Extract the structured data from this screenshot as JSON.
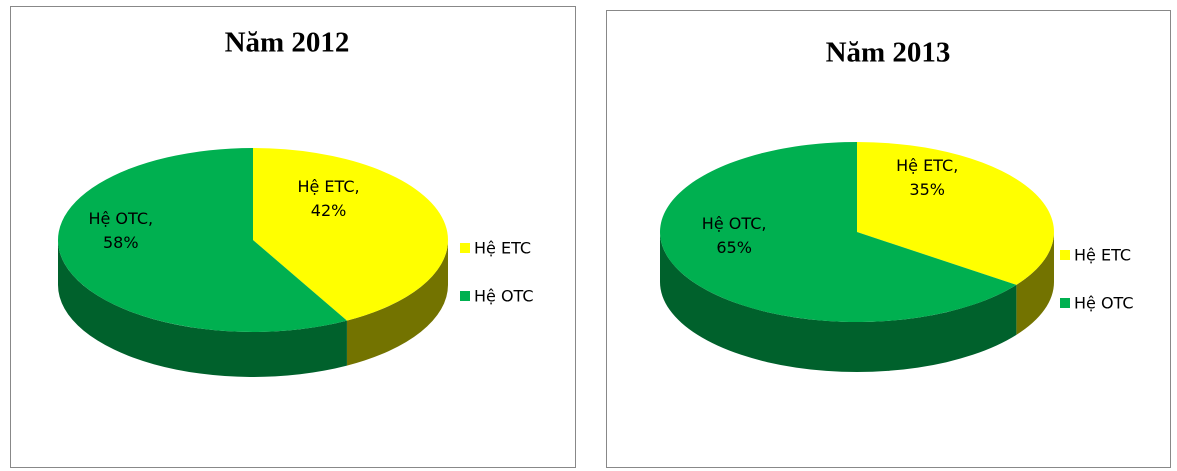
{
  "chart_data": [
    {
      "type": "pie",
      "title": "Năm 2012",
      "categories": [
        "Hệ ETC",
        "Hệ OTC"
      ],
      "values": [
        42,
        58
      ],
      "value_labels": [
        "Hệ ETC, 42%",
        "Hệ OTC, 58%"
      ],
      "colors": [
        "#ffff00",
        "#00b050"
      ],
      "legend": "right"
    },
    {
      "type": "pie",
      "title": "Năm 2013",
      "categories": [
        "Hệ ETC",
        "Hệ OTC"
      ],
      "values": [
        35,
        65
      ],
      "value_labels": [
        "Hệ ETC, 35%",
        "Hệ OTC, 65%"
      ],
      "colors": [
        "#ffff00",
        "#00b050"
      ],
      "legend": "right"
    }
  ]
}
